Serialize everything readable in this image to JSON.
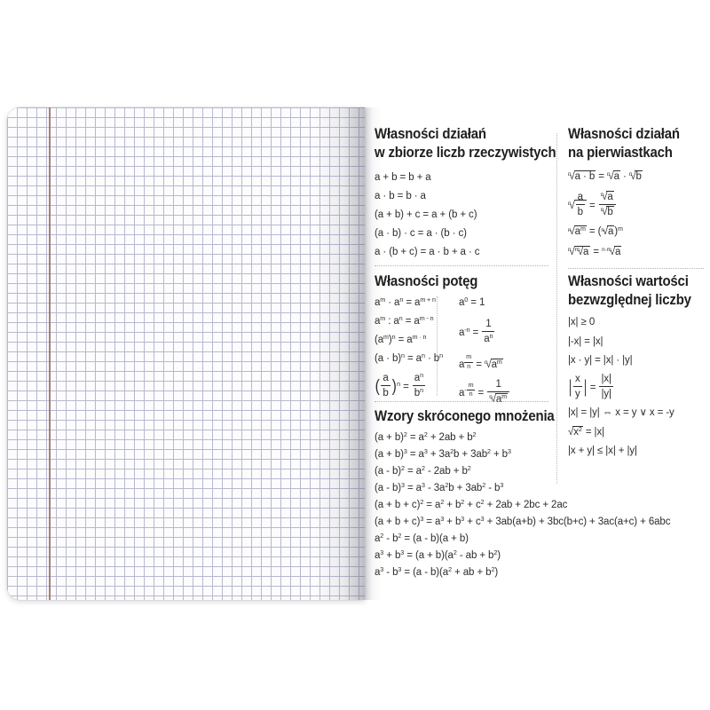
{
  "page": {
    "description": "Open squared notebook with printed math formula cheat sheet",
    "colors": {
      "paper": "#fcfcfe",
      "grid_line": "#b7b9cc",
      "margin_line": "#9b7465",
      "text": "#2c2c2c",
      "divider_dotted": "#b3b3b3"
    }
  },
  "sections": {
    "real_numbers": {
      "title_line1": "Własności działań",
      "title_line2": "w zbiorze liczb rzeczywistych",
      "formulas": [
        "a + b = b + a",
        "a · b = b · a",
        "(a + b) + c = a + (b + c)",
        "(a · b) · c = a · (b · c)",
        "a · (b + c) = a · b + a · c"
      ]
    },
    "powers": {
      "title": "Własności potęg",
      "left_formulas": [
        "a^{m} · a^{n} = a^{m + n}",
        "a^{m} : a^{n} = a^{m - n}",
        "(a^{m})^{n} = a^{m · n}",
        "(a · b)^{n} = a^{n} · b^{n}",
        "big(frac{a}{b}big)^{n} = frac{a^{n}}{b^{n}}"
      ],
      "right_formulas": [
        "a^{0} = 1",
        "a^{-n} = frac{1}{a^{n}}",
        "a^{frac{m}{n}} = root{n}{a^{m}}",
        "a^{-frac{m}{n}} = frac{1}{root{n}{a^{m}}}"
      ]
    },
    "short_multiplication": {
      "title": "Wzory skróconego mnożenia",
      "formulas": [
        "(a + b)^{2} = a^{2} + 2ab + b^{2}",
        "(a + b)^{3} = a^{3} + 3a^{2}b + 3ab^{2} + b^{3}",
        "(a - b)^{2} = a^{2} - 2ab + b^{2}",
        "(a - b)^{3} = a^{3} - 3a^{2}b + 3ab^{2} - b^{3}",
        "(a + b + c)^{2} = a^{2} + b^{2} + c^{2} + 2ab + 2bc + 2ac",
        "(a + b + c)^{3} = a^{3} + b^{3} + c^{3} + 3ab(a+b) + 3bc(b+c) + 3ac(a+c) + 6abc",
        "a^{2} - b^{2} = (a - b)(a + b)",
        "a^{3} + b^{3} = (a + b)(a^{2} - ab + b^{2})",
        "a^{3} - b^{3} = (a - b)(a^{2} + ab + b^{2})"
      ]
    },
    "roots": {
      "title_line1": "Własności działań",
      "title_line2": "na pierwiastkach",
      "formulas": [
        "root{n}{a · b} = root{n}{a} · root{n}{b}",
        "root{n}{frac{a}{b}} = frac{root{n}{a}}{root{n}{b}}",
        "root{n}{a^{m}} = (root{n}{a})^{m}",
        "root{n}{root{m}{a}} = root{n·m}{a}"
      ]
    },
    "absolute_value": {
      "title_line1": "Własności wartości",
      "title_line2": "bezwzględnej liczby",
      "formulas": [
        "|x| ≥ 0",
        "|-x| = |x|",
        "|x · y| = |x| · |y|",
        "big|frac{x}{y}big| = frac{|x|}{|y|}",
        "|x| = |y| ⇔ x = y ∨ x = -y",
        "root{}{x^{2}} = |x|",
        "|x + y| ≤ |x| + |y|"
      ]
    }
  }
}
